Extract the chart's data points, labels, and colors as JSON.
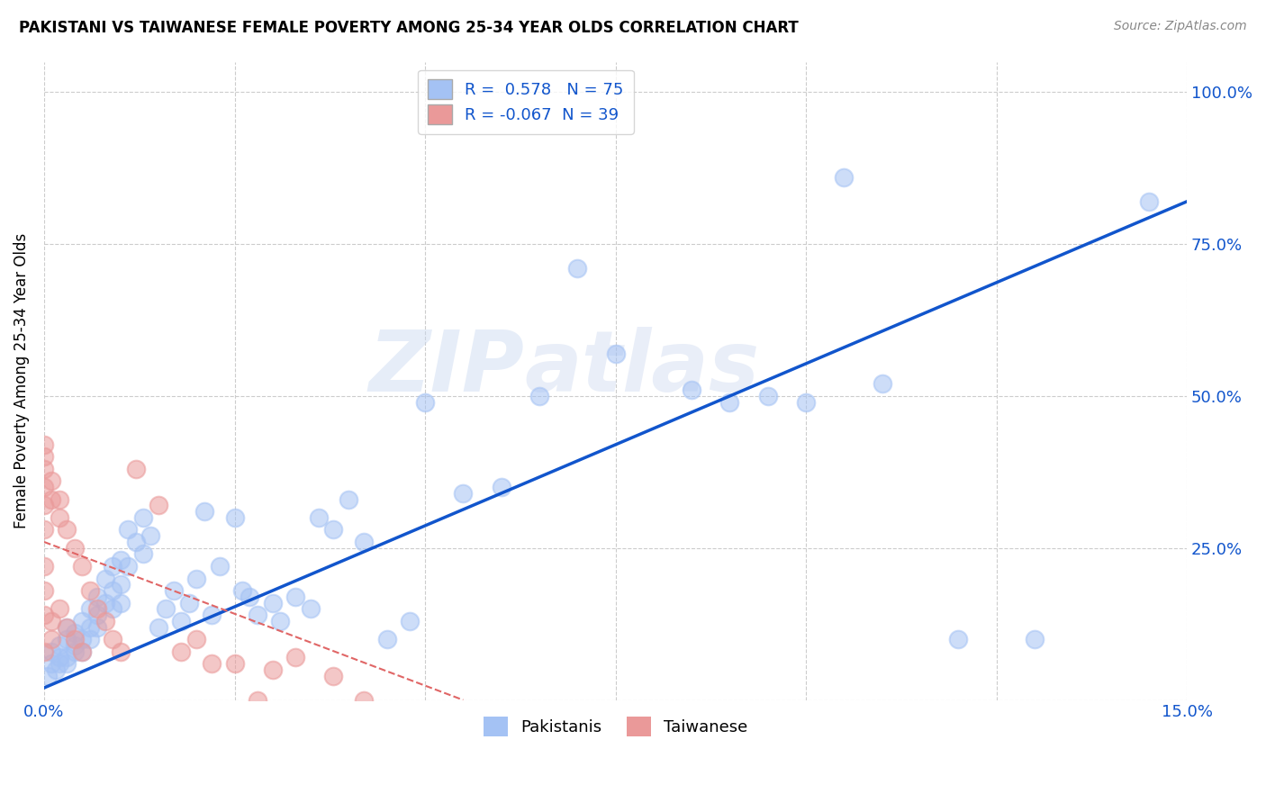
{
  "title": "PAKISTANI VS TAIWANESE FEMALE POVERTY AMONG 25-34 YEAR OLDS CORRELATION CHART",
  "source": "Source: ZipAtlas.com",
  "ylabel": "Female Poverty Among 25-34 Year Olds",
  "watermark_zip": "ZIP",
  "watermark_atlas": "atlas",
  "blue_R": 0.578,
  "blue_N": 75,
  "pink_R": -0.067,
  "pink_N": 39,
  "blue_color": "#a4c2f4",
  "pink_color": "#ea9999",
  "blue_line_color": "#1155cc",
  "pink_line_color": "#e06666",
  "legend_blue_label": "Pakistanis",
  "legend_pink_label": "Taiwanese",
  "xlim": [
    0.0,
    0.15
  ],
  "ylim": [
    0.0,
    1.05
  ],
  "yticks": [
    0.0,
    0.25,
    0.5,
    0.75,
    1.0
  ],
  "blue_x": [
    0.0005,
    0.001,
    0.001,
    0.0015,
    0.002,
    0.002,
    0.002,
    0.003,
    0.003,
    0.003,
    0.003,
    0.004,
    0.004,
    0.004,
    0.005,
    0.005,
    0.005,
    0.006,
    0.006,
    0.006,
    0.007,
    0.007,
    0.007,
    0.008,
    0.008,
    0.009,
    0.009,
    0.009,
    0.01,
    0.01,
    0.01,
    0.011,
    0.011,
    0.012,
    0.013,
    0.013,
    0.014,
    0.015,
    0.016,
    0.017,
    0.018,
    0.019,
    0.02,
    0.021,
    0.022,
    0.023,
    0.025,
    0.026,
    0.027,
    0.028,
    0.03,
    0.031,
    0.033,
    0.035,
    0.036,
    0.038,
    0.04,
    0.042,
    0.045,
    0.048,
    0.05,
    0.055,
    0.06,
    0.065,
    0.07,
    0.075,
    0.085,
    0.09,
    0.095,
    0.1,
    0.105,
    0.11,
    0.12,
    0.13,
    0.145
  ],
  "blue_y": [
    0.04,
    0.06,
    0.08,
    0.05,
    0.07,
    0.09,
    0.06,
    0.1,
    0.06,
    0.12,
    0.07,
    0.09,
    0.11,
    0.08,
    0.1,
    0.13,
    0.08,
    0.12,
    0.15,
    0.1,
    0.14,
    0.17,
    0.12,
    0.16,
    0.2,
    0.18,
    0.15,
    0.22,
    0.19,
    0.23,
    0.16,
    0.22,
    0.28,
    0.26,
    0.24,
    0.3,
    0.27,
    0.12,
    0.15,
    0.18,
    0.13,
    0.16,
    0.2,
    0.31,
    0.14,
    0.22,
    0.3,
    0.18,
    0.17,
    0.14,
    0.16,
    0.13,
    0.17,
    0.15,
    0.3,
    0.28,
    0.33,
    0.26,
    0.1,
    0.13,
    0.49,
    0.34,
    0.35,
    0.5,
    0.71,
    0.57,
    0.51,
    0.49,
    0.5,
    0.49,
    0.86,
    0.52,
    0.1,
    0.1,
    0.82
  ],
  "pink_x": [
    0.0,
    0.0,
    0.0,
    0.0,
    0.0,
    0.0,
    0.0,
    0.0,
    0.0,
    0.0,
    0.001,
    0.001,
    0.001,
    0.001,
    0.002,
    0.002,
    0.002,
    0.003,
    0.003,
    0.004,
    0.004,
    0.005,
    0.005,
    0.006,
    0.007,
    0.008,
    0.009,
    0.01,
    0.012,
    0.015,
    0.018,
    0.02,
    0.022,
    0.025,
    0.028,
    0.03,
    0.033,
    0.038,
    0.042
  ],
  "pink_y": [
    0.35,
    0.38,
    0.4,
    0.42,
    0.28,
    0.32,
    0.18,
    0.22,
    0.14,
    0.08,
    0.33,
    0.36,
    0.1,
    0.13,
    0.3,
    0.33,
    0.15,
    0.28,
    0.12,
    0.25,
    0.1,
    0.22,
    0.08,
    0.18,
    0.15,
    0.13,
    0.1,
    0.08,
    0.38,
    0.32,
    0.08,
    0.1,
    0.06,
    0.06,
    0.0,
    0.05,
    0.07,
    0.04,
    0.0
  ],
  "blue_line_x": [
    0.0,
    0.15
  ],
  "blue_line_y": [
    0.02,
    0.82
  ],
  "pink_line_x": [
    0.0,
    0.055
  ],
  "pink_line_y": [
    0.26,
    0.0
  ]
}
